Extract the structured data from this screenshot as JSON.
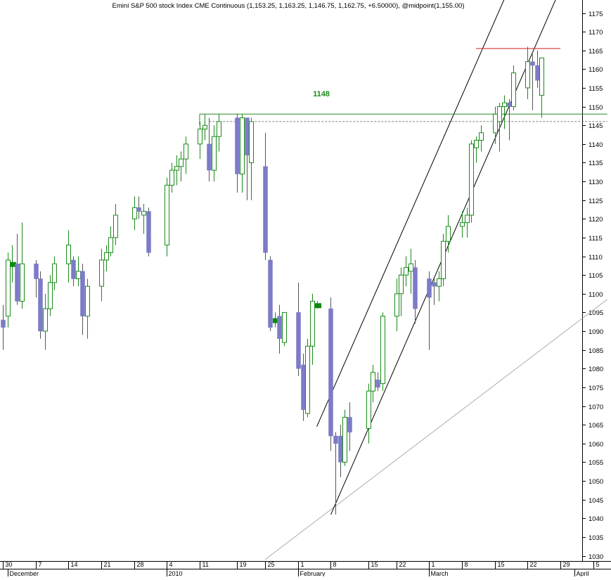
{
  "chart_data": {
    "type": "candlestick",
    "title": "Emini S&P 500 stock Index CME Continuous (1,153.25, 1,163.25, 1,146.75, 1,162.75, +6.50000), @midpoint(1,155.00)",
    "annotation_label": "1148",
    "y_axis": {
      "side": "right",
      "range": [
        1027,
        1181
      ],
      "ticks": [
        1030,
        1035,
        1040,
        1045,
        1050,
        1055,
        1060,
        1065,
        1070,
        1075,
        1080,
        1085,
        1090,
        1095,
        1100,
        1105,
        1110,
        1115,
        1120,
        1125,
        1130,
        1135,
        1140,
        1145,
        1150,
        1155,
        1160,
        1165,
        1170,
        1175
      ]
    },
    "x_axis": {
      "day_ticks": [
        {
          "label": "30",
          "date": "2009-11-30"
        },
        {
          "label": "7",
          "date": "2009-12-07"
        },
        {
          "label": "14",
          "date": "2009-12-14"
        },
        {
          "label": "21",
          "date": "2009-12-21"
        },
        {
          "label": "28",
          "date": "2009-12-28"
        },
        {
          "label": "4",
          "date": "2010-01-04"
        },
        {
          "label": "11",
          "date": "2010-01-11"
        },
        {
          "label": "19",
          "date": "2010-01-19"
        },
        {
          "label": "25",
          "date": "2010-01-25"
        },
        {
          "label": "1",
          "date": "2010-02-01"
        },
        {
          "label": "8",
          "date": "2010-02-08"
        },
        {
          "label": "15",
          "date": "2010-02-16"
        },
        {
          "label": "22",
          "date": "2010-02-22"
        },
        {
          "label": "1",
          "date": "2010-03-01"
        },
        {
          "label": "8",
          "date": "2010-03-08"
        },
        {
          "label": "15",
          "date": "2010-03-15"
        },
        {
          "label": "22",
          "date": "2010-03-22"
        },
        {
          "label": "29",
          "date": "2010-03-29"
        },
        {
          "label": "5",
          "date": "2010-04-05"
        }
      ],
      "month_labels": [
        {
          "label": "December",
          "date": "2009-12-01"
        },
        {
          "label": "2010",
          "date": "2010-01-04"
        },
        {
          "label": "February",
          "date": "2010-02-01"
        },
        {
          "label": "March",
          "date": "2010-03-01"
        },
        {
          "label": "April",
          "date": "2010-04-01"
        }
      ]
    },
    "colors": {
      "up_candle": "#1a8a1a",
      "down_candle": "#7b7bc8",
      "doji": "#0a8a0a",
      "resistance_line": "#d03030",
      "support_line": "#2a8a2a",
      "trend_line": "#000000",
      "grid": "#cccccc",
      "axis": "#000000"
    },
    "series": [
      {
        "d": "2009-11-30",
        "o": 1093,
        "h": 1097,
        "l": 1085,
        "c": 1091
      },
      {
        "d": "2009-12-01",
        "o": 1094,
        "h": 1111,
        "l": 1091,
        "c": 1109
      },
      {
        "d": "2009-12-02",
        "o": 1108,
        "h": 1113,
        "l": 1103,
        "c": 1108
      },
      {
        "d": "2009-12-03",
        "o": 1108,
        "h": 1116,
        "l": 1097,
        "c": 1098
      },
      {
        "d": "2009-12-04",
        "o": 1098,
        "h": 1119,
        "l": 1096,
        "c": 1108
      },
      {
        "d": "2009-12-07",
        "o": 1108,
        "h": 1109,
        "l": 1099,
        "c": 1104
      },
      {
        "d": "2009-12-08",
        "o": 1104,
        "h": 1106,
        "l": 1088,
        "c": 1090
      },
      {
        "d": "2009-12-09",
        "o": 1090,
        "h": 1100,
        "l": 1085,
        "c": 1096
      },
      {
        "d": "2009-12-10",
        "o": 1096,
        "h": 1105,
        "l": 1094,
        "c": 1103
      },
      {
        "d": "2009-12-11",
        "o": 1103,
        "h": 1110,
        "l": 1101,
        "c": 1108
      },
      {
        "d": "2009-12-14",
        "o": 1108,
        "h": 1117,
        "l": 1103,
        "c": 1113
      },
      {
        "d": "2009-12-15",
        "o": 1109,
        "h": 1110,
        "l": 1102,
        "c": 1104
      },
      {
        "d": "2009-12-16",
        "o": 1104,
        "h": 1110,
        "l": 1102,
        "c": 1106
      },
      {
        "d": "2009-12-17",
        "o": 1106,
        "h": 1108,
        "l": 1089,
        "c": 1094
      },
      {
        "d": "2009-12-18",
        "o": 1094,
        "h": 1104,
        "l": 1088,
        "c": 1102
      },
      {
        "d": "2009-12-21",
        "o": 1102,
        "h": 1112,
        "l": 1098,
        "c": 1109
      },
      {
        "d": "2009-12-22",
        "o": 1109,
        "h": 1113,
        "l": 1106,
        "c": 1111
      },
      {
        "d": "2009-12-23",
        "o": 1111,
        "h": 1118,
        "l": 1110,
        "c": 1115
      },
      {
        "d": "2009-12-24",
        "o": 1115,
        "h": 1124,
        "l": 1113,
        "c": 1121
      },
      {
        "d": "2009-12-28",
        "o": 1120,
        "h": 1126,
        "l": 1117,
        "c": 1123
      },
      {
        "d": "2009-12-29",
        "o": 1123,
        "h": 1126,
        "l": 1120,
        "c": 1122
      },
      {
        "d": "2009-12-30",
        "o": 1121,
        "h": 1124,
        "l": 1116,
        "c": 1122
      },
      {
        "d": "2009-12-31",
        "o": 1122,
        "h": 1123,
        "l": 1110,
        "c": 1111
      },
      {
        "d": "2010-01-04",
        "o": 1113,
        "h": 1131,
        "l": 1110,
        "c": 1129
      },
      {
        "d": "2010-01-05",
        "o": 1129,
        "h": 1135,
        "l": 1127,
        "c": 1133
      },
      {
        "d": "2010-01-06",
        "o": 1133,
        "h": 1137,
        "l": 1129,
        "c": 1134
      },
      {
        "d": "2010-01-07",
        "o": 1134,
        "h": 1138,
        "l": 1130,
        "c": 1136
      },
      {
        "d": "2010-01-08",
        "o": 1136,
        "h": 1142,
        "l": 1132,
        "c": 1140
      },
      {
        "d": "2010-01-11",
        "o": 1140,
        "h": 1146,
        "l": 1136,
        "c": 1144
      },
      {
        "d": "2010-01-12",
        "o": 1144,
        "h": 1148,
        "l": 1141,
        "c": 1145
      },
      {
        "d": "2010-01-13",
        "o": 1140,
        "h": 1147,
        "l": 1130,
        "c": 1133
      },
      {
        "d": "2010-01-14",
        "o": 1133,
        "h": 1145,
        "l": 1130,
        "c": 1142
      },
      {
        "d": "2010-01-15",
        "o": 1142,
        "h": 1148,
        "l": 1138,
        "c": 1146
      },
      {
        "d": "2010-01-19",
        "o": 1147,
        "h": 1148,
        "l": 1127,
        "c": 1132
      },
      {
        "d": "2010-01-20",
        "o": 1132,
        "h": 1148,
        "l": 1127,
        "c": 1147
      },
      {
        "d": "2010-01-21",
        "o": 1147,
        "h": 1147,
        "l": 1125,
        "c": 1137
      },
      {
        "d": "2010-01-22",
        "o": 1135,
        "h": 1147,
        "l": 1125,
        "c": 1146
      },
      {
        "d": "2010-01-25",
        "o": 1134,
        "h": 1143,
        "l": 1109,
        "c": 1111
      },
      {
        "d": "2010-01-26",
        "o": 1109,
        "h": 1110,
        "l": 1090,
        "c": 1091
      },
      {
        "d": "2010-01-27",
        "o": 1093,
        "h": 1095,
        "l": 1091,
        "c": 1093
      },
      {
        "d": "2010-01-28",
        "o": 1094,
        "h": 1097,
        "l": 1084,
        "c": 1088
      },
      {
        "d": "2010-01-29",
        "o": 1087,
        "h": 1095,
        "l": 1086,
        "c": 1095
      },
      {
        "d": "2010-02-01",
        "o": 1095,
        "h": 1103,
        "l": 1078,
        "c": 1080
      },
      {
        "d": "2010-02-02",
        "o": 1081,
        "h": 1084,
        "l": 1066,
        "c": 1069
      },
      {
        "d": "2010-02-03",
        "o": 1068,
        "h": 1088,
        "l": 1067,
        "c": 1086
      },
      {
        "d": "2010-02-04",
        "o": 1086,
        "h": 1100,
        "l": 1081,
        "c": 1098
      },
      {
        "d": "2010-02-05",
        "o": 1097,
        "h": 1098,
        "l": 1096,
        "c": 1097
      },
      {
        "d": "2010-02-08",
        "o": 1096,
        "h": 1099,
        "l": 1058,
        "c": 1062
      },
      {
        "d": "2010-02-09",
        "o": 1062,
        "h": 1063,
        "l": 1041,
        "c": 1060
      },
      {
        "d": "2010-02-10",
        "o": 1062,
        "h": 1065,
        "l": 1051,
        "c": 1055
      },
      {
        "d": "2010-02-11",
        "o": 1055,
        "h": 1069,
        "l": 1054,
        "c": 1067
      },
      {
        "d": "2010-02-12",
        "o": 1067,
        "h": 1071,
        "l": 1058,
        "c": 1063
      },
      {
        "d": "2010-02-16",
        "o": 1064,
        "h": 1076,
        "l": 1060,
        "c": 1074
      },
      {
        "d": "2010-02-17",
        "o": 1074,
        "h": 1081,
        "l": 1071,
        "c": 1079
      },
      {
        "d": "2010-02-18",
        "o": 1077,
        "h": 1079,
        "l": 1074,
        "c": 1075
      },
      {
        "d": "2010-02-19",
        "o": 1076,
        "h": 1095,
        "l": 1074,
        "c": 1094
      },
      {
        "d": "2010-02-22",
        "o": 1094,
        "h": 1104,
        "l": 1090,
        "c": 1100
      },
      {
        "d": "2010-02-23",
        "o": 1100,
        "h": 1107,
        "l": 1094,
        "c": 1105
      },
      {
        "d": "2010-02-24",
        "o": 1105,
        "h": 1110,
        "l": 1102,
        "c": 1107
      },
      {
        "d": "2010-02-25",
        "o": 1106,
        "h": 1112,
        "l": 1100,
        "c": 1108
      },
      {
        "d": "2010-02-26",
        "o": 1107,
        "h": 1109,
        "l": 1092,
        "c": 1096
      },
      {
        "d": "2010-03-01",
        "o": 1104,
        "h": 1106,
        "l": 1085,
        "c": 1099
      },
      {
        "d": "2010-03-02",
        "o": 1103,
        "h": 1104,
        "l": 1097,
        "c": 1102
      },
      {
        "d": "2010-03-03",
        "o": 1102,
        "h": 1106,
        "l": 1098,
        "c": 1104
      },
      {
        "d": "2010-03-04",
        "o": 1104,
        "h": 1116,
        "l": 1102,
        "c": 1114
      },
      {
        "d": "2010-03-05",
        "o": 1114,
        "h": 1121,
        "l": 1111,
        "c": 1118
      },
      {
        "d": "2010-03-08",
        "o": 1118,
        "h": 1122,
        "l": 1115,
        "c": 1119
      },
      {
        "d": "2010-03-09",
        "o": 1119,
        "h": 1123,
        "l": 1115,
        "c": 1121
      },
      {
        "d": "2010-03-10",
        "o": 1121,
        "h": 1141,
        "l": 1119,
        "c": 1140
      },
      {
        "d": "2010-03-11",
        "o": 1139,
        "h": 1142,
        "l": 1135,
        "c": 1141
      },
      {
        "d": "2010-03-12",
        "o": 1141,
        "h": 1145,
        "l": 1138,
        "c": 1143
      },
      {
        "d": "2010-03-15",
        "o": 1143,
        "h": 1150,
        "l": 1140,
        "c": 1148
      },
      {
        "d": "2010-03-16",
        "o": 1146,
        "h": 1151,
        "l": 1138,
        "c": 1150
      },
      {
        "d": "2010-03-17",
        "o": 1150,
        "h": 1153,
        "l": 1144,
        "c": 1151
      },
      {
        "d": "2010-03-18",
        "o": 1151,
        "h": 1152,
        "l": 1141,
        "c": 1150
      },
      {
        "d": "2010-03-19",
        "o": 1150,
        "h": 1161,
        "l": 1149,
        "c": 1159
      },
      {
        "d": "2010-03-22",
        "o": 1155,
        "h": 1166,
        "l": 1152,
        "c": 1162
      },
      {
        "d": "2010-03-23",
        "o": 1162,
        "h": 1164,
        "l": 1149,
        "c": 1161
      },
      {
        "d": "2010-03-24",
        "o": 1161,
        "h": 1165,
        "l": 1155,
        "c": 1157
      },
      {
        "d": "2010-03-25",
        "o": 1153,
        "h": 1163,
        "l": 1147,
        "c": 1163
      }
    ]
  }
}
